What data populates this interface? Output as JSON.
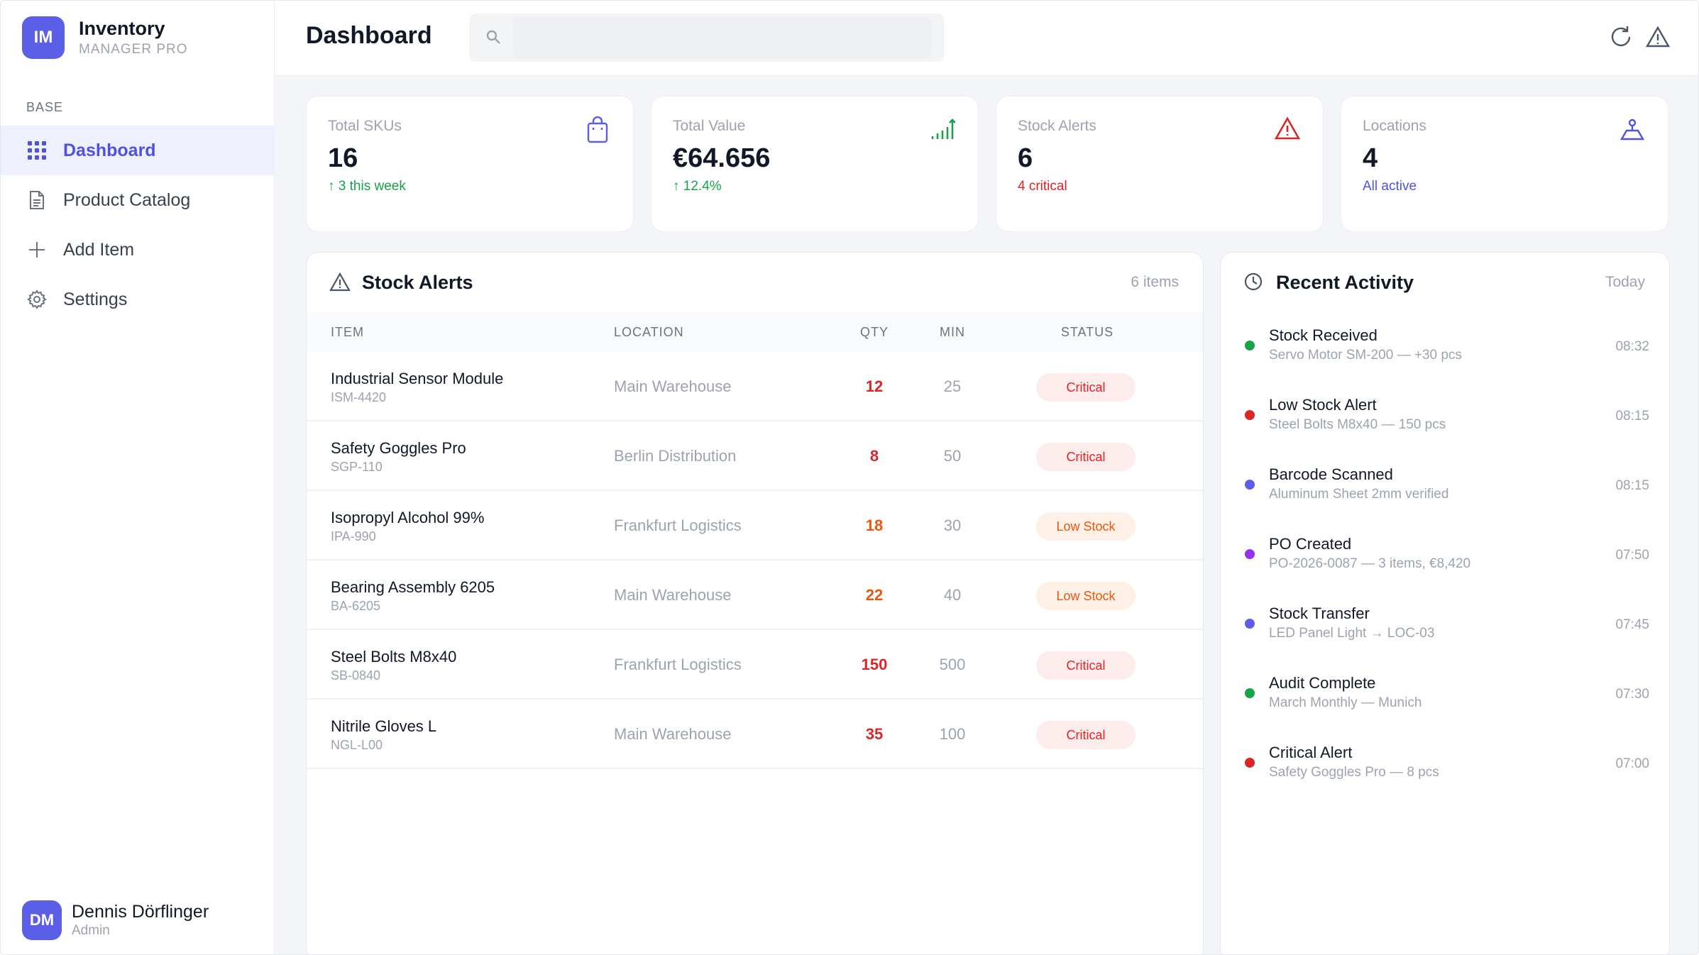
{
  "brand": {
    "initials": "IM",
    "name": "Inventory",
    "subtitle": "MANAGER PRO"
  },
  "sidebar": {
    "section_label": "BASE",
    "items": [
      {
        "label": "Dashboard",
        "icon": "grid-icon",
        "active": true
      },
      {
        "label": "Product Catalog",
        "icon": "document-icon",
        "active": false
      },
      {
        "label": "Add Item",
        "icon": "plus-icon",
        "active": false
      },
      {
        "label": "Settings",
        "icon": "gear-icon",
        "active": false
      }
    ]
  },
  "user": {
    "initials": "DM",
    "name": "Dennis Dörflinger",
    "role": "Admin"
  },
  "header": {
    "title": "Dashboard",
    "search_value": "",
    "actions": [
      "refresh-icon",
      "warning-icon"
    ]
  },
  "stats": [
    {
      "label": "Total SKUs",
      "value": "16",
      "sub": "↑ 3 this week",
      "sub_color": "#16a34a",
      "icon": "bag-icon",
      "icon_color": "#5b5fe8"
    },
    {
      "label": "Total Value",
      "value": "€64.656",
      "sub": "↑ 12.4%",
      "sub_color": "#16a34a",
      "icon": "signal-up-icon",
      "icon_color": "#16a34a"
    },
    {
      "label": "Stock Alerts",
      "value": "6",
      "sub": "4 critical",
      "sub_color": "#dc2626",
      "icon": "warning-icon",
      "icon_color": "#dc2626"
    },
    {
      "label": "Locations",
      "value": "4",
      "sub": "All active",
      "sub_color": "#4f52e0",
      "icon": "location-icon",
      "icon_color": "#4f52e0"
    }
  ],
  "alerts": {
    "title": "Stock Alerts",
    "count_label": "6 items",
    "columns": {
      "item": "ITEM",
      "location": "LOCATION",
      "qty": "QTY",
      "min": "MIN",
      "status": "STATUS"
    },
    "rows": [
      {
        "name": "Industrial Sensor Module",
        "sku": "ISM-4420",
        "location": "Main Warehouse",
        "qty": "12",
        "min": "25",
        "status": "Critical"
      },
      {
        "name": "Safety Goggles Pro",
        "sku": "SGP-110",
        "location": "Berlin Distribution",
        "qty": "8",
        "min": "50",
        "status": "Critical"
      },
      {
        "name": "Isopropyl Alcohol 99%",
        "sku": "IPA-990",
        "location": "Frankfurt Logistics",
        "qty": "18",
        "min": "30",
        "status": "Low Stock"
      },
      {
        "name": "Bearing Assembly 6205",
        "sku": "BA-6205",
        "location": "Main Warehouse",
        "qty": "22",
        "min": "40",
        "status": "Low Stock"
      },
      {
        "name": "Steel Bolts M8x40",
        "sku": "SB-0840",
        "location": "Frankfurt Logistics",
        "qty": "150",
        "min": "500",
        "status": "Critical"
      },
      {
        "name": "Nitrile Gloves L",
        "sku": "NGL-L00",
        "location": "Main Warehouse",
        "qty": "35",
        "min": "100",
        "status": "Critical"
      }
    ]
  },
  "activity": {
    "title": "Recent Activity",
    "period": "Today",
    "items": [
      {
        "title": "Stock Received",
        "desc": "Servo Motor SM-200 — +30 pcs",
        "time": "08:32",
        "color": "#16a34a"
      },
      {
        "title": "Low Stock Alert",
        "desc": "Steel Bolts M8x40 — 150 pcs",
        "time": "08:15",
        "color": "#dc2626"
      },
      {
        "title": "Barcode Scanned",
        "desc": "Aluminum Sheet 2mm verified",
        "time": "08:15",
        "color": "#5b5fe8"
      },
      {
        "title": "PO Created",
        "desc": "PO-2026-0087 — 3 items, €8,420",
        "time": "07:50",
        "color": "#9333ea"
      },
      {
        "title": "Stock Transfer",
        "desc": "LED Panel Light → LOC-03",
        "time": "07:45",
        "color": "#5b5fe8"
      },
      {
        "title": "Audit Complete",
        "desc": "March Monthly — Munich",
        "time": "07:30",
        "color": "#16a34a"
      },
      {
        "title": "Critical Alert",
        "desc": "Safety Goggles Pro — 8 pcs",
        "time": "07:00",
        "color": "#dc2626"
      }
    ]
  },
  "colors": {
    "accent": "#5b5fe8",
    "critical_text": "#dc2626",
    "critical_bg": "#fdecec",
    "low_text": "#ea580c",
    "low_bg": "#fdf0e6"
  }
}
